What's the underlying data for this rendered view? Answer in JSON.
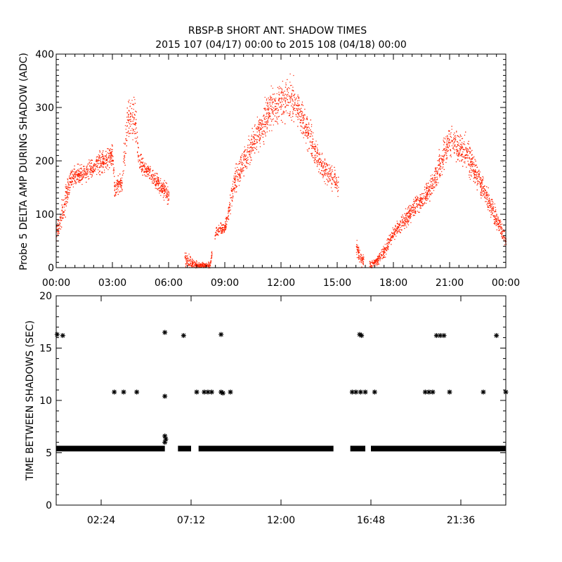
{
  "title_line1": "RBSP-B SHORT ANT. SHADOW TIMES",
  "title_line2": "2015 107 (04/17) 00:00 to 2015 108 (04/18) 00:00",
  "colors": {
    "amplitude_dots": "#ff2000",
    "shadow_markers": "#000000",
    "axes": "#000000",
    "background": "#ffffff"
  },
  "chart_data": [
    {
      "type": "scatter",
      "panel": "top",
      "title": "",
      "xlabel": "",
      "ylabel": "Probe 5 DELTA AMP DURING SHADOW (ADC)",
      "xlim": [
        0,
        24
      ],
      "ylim": [
        0,
        400
      ],
      "x_ticks": [
        0,
        3,
        6,
        9,
        12,
        15,
        18,
        21,
        24
      ],
      "x_tick_labels": [
        "00:00",
        "03:00",
        "06:00",
        "09:00",
        "12:00",
        "15:00",
        "18:00",
        "21:00",
        "00:00"
      ],
      "y_ticks": [
        0,
        100,
        200,
        300,
        400
      ],
      "y_tick_labels": [
        "0",
        "100",
        "200",
        "300",
        "400"
      ],
      "grid": false,
      "x_units": "hours",
      "envelope": [
        {
          "x": 0.0,
          "y": 65,
          "spread": 25
        },
        {
          "x": 0.5,
          "y": 130,
          "spread": 35
        },
        {
          "x": 0.75,
          "y": 165,
          "spread": 25
        },
        {
          "x": 1.5,
          "y": 180,
          "spread": 25
        },
        {
          "x": 2.5,
          "y": 200,
          "spread": 30
        },
        {
          "x": 3.0,
          "y": 210,
          "spread": 30
        },
        {
          "x": 3.1,
          "y": 150,
          "spread": 30
        },
        {
          "x": 3.5,
          "y": 160,
          "spread": 30
        },
        {
          "x": 3.8,
          "y": 280,
          "spread": 60
        },
        {
          "x": 4.2,
          "y": 280,
          "spread": 60
        },
        {
          "x": 4.4,
          "y": 200,
          "spread": 25
        },
        {
          "x": 5.0,
          "y": 175,
          "spread": 20
        },
        {
          "x": 5.9,
          "y": 140,
          "spread": 25
        },
        {
          "x": 6.9,
          "y": 15,
          "spread": 20
        },
        {
          "x": 7.5,
          "y": 5,
          "spread": 8
        },
        {
          "x": 8.2,
          "y": 5,
          "spread": 8
        },
        {
          "x": 8.5,
          "y": 70,
          "spread": 15
        },
        {
          "x": 9.0,
          "y": 75,
          "spread": 15
        },
        {
          "x": 9.5,
          "y": 160,
          "spread": 40
        },
        {
          "x": 10.5,
          "y": 240,
          "spread": 40
        },
        {
          "x": 11.5,
          "y": 300,
          "spread": 55
        },
        {
          "x": 12.5,
          "y": 320,
          "spread": 60
        },
        {
          "x": 13.0,
          "y": 290,
          "spread": 50
        },
        {
          "x": 14.0,
          "y": 200,
          "spread": 35
        },
        {
          "x": 15.0,
          "y": 160,
          "spread": 30
        },
        {
          "x": 16.2,
          "y": 20,
          "spread": 20
        },
        {
          "x": 16.8,
          "y": 5,
          "spread": 8
        },
        {
          "x": 17.3,
          "y": 20,
          "spread": 15
        },
        {
          "x": 18.0,
          "y": 65,
          "spread": 20
        },
        {
          "x": 19.0,
          "y": 110,
          "spread": 25
        },
        {
          "x": 20.0,
          "y": 150,
          "spread": 30
        },
        {
          "x": 21.0,
          "y": 240,
          "spread": 45
        },
        {
          "x": 22.0,
          "y": 210,
          "spread": 45
        },
        {
          "x": 23.0,
          "y": 130,
          "spread": 30
        },
        {
          "x": 24.0,
          "y": 50,
          "spread": 20
        }
      ]
    },
    {
      "type": "scatter",
      "panel": "bottom",
      "title": "",
      "xlabel": "",
      "ylabel": "TIME BETWEEN SHADOWS (SEC)",
      "xlim": [
        0,
        24
      ],
      "ylim": [
        0,
        20
      ],
      "x_ticks": [
        2.4,
        7.2,
        12,
        16.8,
        21.6
      ],
      "x_tick_labels": [
        "02:24",
        "07:12",
        "12:00",
        "16:48",
        "21:36"
      ],
      "y_ticks": [
        0,
        5,
        10,
        15,
        20
      ],
      "y_tick_labels": [
        "0",
        "5",
        "10",
        "15",
        "20"
      ],
      "grid": false,
      "baseline_segments": [
        [
          0.0,
          5.8,
          5.4
        ],
        [
          6.5,
          7.2,
          5.4
        ],
        [
          7.6,
          14.8,
          5.4
        ],
        [
          15.7,
          16.5,
          5.4
        ],
        [
          16.8,
          24.0,
          5.4
        ]
      ],
      "points": [
        [
          0.05,
          16.3
        ],
        [
          0.35,
          16.2
        ],
        [
          3.1,
          10.8
        ],
        [
          3.6,
          10.8
        ],
        [
          4.3,
          10.8
        ],
        [
          5.8,
          16.5
        ],
        [
          5.8,
          10.4
        ],
        [
          5.8,
          6.6
        ],
        [
          5.85,
          6.3
        ],
        [
          5.8,
          6.0
        ],
        [
          6.8,
          16.2
        ],
        [
          7.5,
          10.8
        ],
        [
          7.9,
          10.8
        ],
        [
          8.1,
          10.8
        ],
        [
          8.3,
          10.8
        ],
        [
          8.8,
          16.3
        ],
        [
          8.8,
          10.8
        ],
        [
          8.9,
          10.7
        ],
        [
          9.3,
          10.8
        ],
        [
          15.8,
          10.8
        ],
        [
          16.0,
          10.8
        ],
        [
          16.2,
          16.3
        ],
        [
          16.25,
          10.8
        ],
        [
          16.3,
          16.2
        ],
        [
          16.5,
          10.8
        ],
        [
          17.0,
          10.8
        ],
        [
          19.7,
          10.8
        ],
        [
          19.9,
          10.8
        ],
        [
          20.1,
          10.8
        ],
        [
          20.3,
          16.2
        ],
        [
          20.5,
          16.2
        ],
        [
          20.7,
          16.2
        ],
        [
          21.0,
          10.8
        ],
        [
          22.8,
          10.8
        ],
        [
          23.5,
          16.2
        ],
        [
          24.0,
          10.8
        ]
      ]
    }
  ]
}
